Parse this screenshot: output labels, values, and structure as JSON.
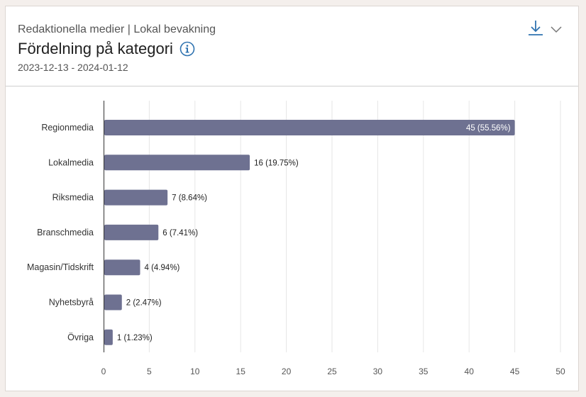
{
  "header": {
    "subtitle": "Redaktionella medier | Lokal bevakning",
    "title": "Fördelning på kategori",
    "date_range": "2023-12-13 - 2024-01-12"
  },
  "icons": {
    "info": "info-icon",
    "download": "download-icon",
    "menu": "chevron-down-icon"
  },
  "colors": {
    "bar": "#6e7191",
    "accent": "#2f73b0",
    "grid": "#e6e6e6"
  },
  "chart_data": {
    "type": "bar",
    "orientation": "horizontal",
    "categories": [
      "Regionmedia",
      "Lokalmedia",
      "Riksmedia",
      "Branschmedia",
      "Magasin/Tidskrift",
      "Nyhetsbyrå",
      "Övriga"
    ],
    "values": [
      45,
      16,
      7,
      6,
      4,
      2,
      1
    ],
    "data_labels": [
      "45 (55.56%)",
      "16 (19.75%)",
      "7 (8.64%)",
      "6 (7.41%)",
      "4 (4.94%)",
      "2 (2.47%)",
      "1 (1.23%)"
    ],
    "xlim": [
      0,
      50
    ],
    "xticks": [
      "0",
      "5",
      "10",
      "15",
      "20",
      "25",
      "30",
      "35",
      "40",
      "45",
      "50"
    ],
    "grid": true,
    "legend": "none"
  }
}
